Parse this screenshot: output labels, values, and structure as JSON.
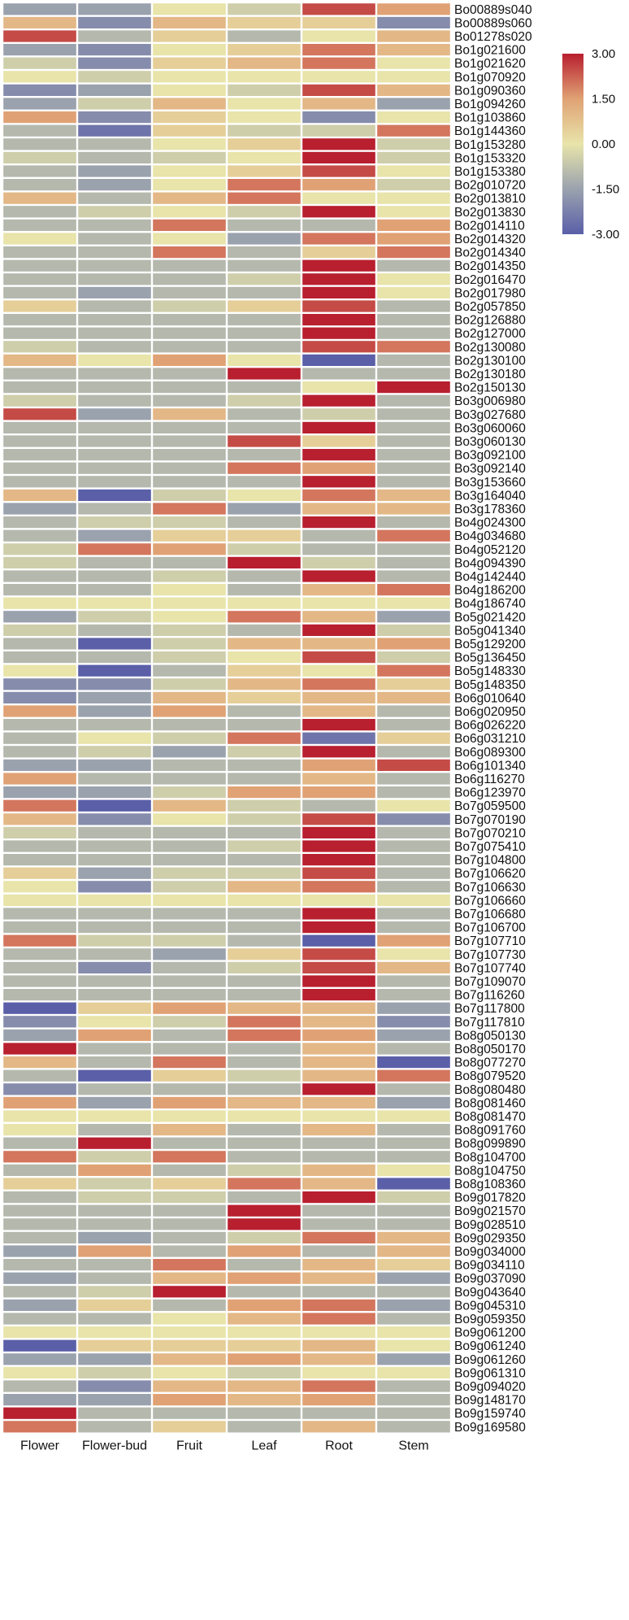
{
  "chart_data": {
    "type": "heatmap",
    "columns": [
      "Flower",
      "Flower-bud",
      "Fruit",
      "Leaf",
      "Root",
      "Stem"
    ],
    "color_scale": {
      "min": -3,
      "max": 3,
      "stops": [
        {
          "value": -3,
          "color": "#5a5fa8"
        },
        {
          "value": -1.5,
          "color": "#9aa2ae"
        },
        {
          "value": 0,
          "color": "#e8e4aa"
        },
        {
          "value": 1.5,
          "color": "#e0a274"
        },
        {
          "value": 3,
          "color": "#b81f2f"
        }
      ],
      "tick_labels": [
        "3.00",
        "1.50",
        "0.00",
        "-1.50",
        "-3.00"
      ]
    },
    "rows": [
      {
        "gene": "Bo00889s040",
        "values": [
          -1.5,
          -1.5,
          0,
          -0.5,
          2.5,
          1.5
        ]
      },
      {
        "gene": "Bo00889s060",
        "values": [
          1,
          -2,
          1,
          0.5,
          0.5,
          -2
        ]
      },
      {
        "gene": "Bo01278s020",
        "values": [
          2.5,
          -1,
          0.5,
          -1,
          0,
          1
        ]
      },
      {
        "gene": "Bo1g021600",
        "values": [
          -1.5,
          -2,
          0,
          0.5,
          2,
          1
        ]
      },
      {
        "gene": "Bo1g021620",
        "values": [
          -0.5,
          -2,
          0.5,
          1,
          2,
          0
        ]
      },
      {
        "gene": "Bo1g070920",
        "values": [
          0,
          -0.5,
          0,
          0,
          0,
          0
        ]
      },
      {
        "gene": "Bo1g090360",
        "values": [
          -2,
          -1.5,
          0,
          -0.5,
          2.5,
          1
        ]
      },
      {
        "gene": "Bo1g094260",
        "values": [
          -1.5,
          -0.5,
          1,
          0,
          1,
          -1.5
        ]
      },
      {
        "gene": "Bo1g103860",
        "values": [
          1.5,
          -2,
          0.5,
          0,
          -2,
          0
        ]
      },
      {
        "gene": "Bo1g144360",
        "values": [
          -1,
          -2.5,
          0.5,
          -0.5,
          -0.5,
          2
        ]
      },
      {
        "gene": "Bo1g153280",
        "values": [
          -1,
          -1,
          0,
          0.5,
          3,
          -0.5
        ]
      },
      {
        "gene": "Bo1g153320",
        "values": [
          -0.5,
          -1,
          -0.5,
          0,
          3,
          -0.5
        ]
      },
      {
        "gene": "Bo1g153380",
        "values": [
          -1,
          -1.5,
          0,
          0.5,
          2.5,
          0
        ]
      },
      {
        "gene": "Bo2g010720",
        "values": [
          -1,
          -1.5,
          0,
          2,
          1.5,
          -0.5
        ]
      },
      {
        "gene": "Bo2g013810",
        "values": [
          1,
          -1,
          1,
          2,
          0,
          0
        ]
      },
      {
        "gene": "Bo2g013830",
        "values": [
          -1,
          -0.5,
          0,
          -0.5,
          3,
          0
        ]
      },
      {
        "gene": "Bo2g014110",
        "values": [
          -1,
          -1,
          2,
          -1,
          -1,
          1.5
        ]
      },
      {
        "gene": "Bo2g014320",
        "values": [
          0,
          -1,
          0,
          -1.5,
          2,
          1.5
        ]
      },
      {
        "gene": "Bo2g014340",
        "values": [
          -1,
          -1,
          2,
          -1,
          0.5,
          2
        ]
      },
      {
        "gene": "Bo2g014350",
        "values": [
          -1,
          -1,
          -1,
          -1,
          3,
          -1
        ]
      },
      {
        "gene": "Bo2g016470",
        "values": [
          -1,
          -1,
          -1,
          -0.5,
          3,
          0
        ]
      },
      {
        "gene": "Bo2g017980",
        "values": [
          -1,
          -1.5,
          -1,
          -1,
          3,
          0
        ]
      },
      {
        "gene": "Bo2g057850",
        "values": [
          0.5,
          -1,
          -0.5,
          0.5,
          2.5,
          -1
        ]
      },
      {
        "gene": "Bo2g126880",
        "values": [
          -1,
          -1,
          -1,
          -1,
          3,
          -1
        ]
      },
      {
        "gene": "Bo2g127000",
        "values": [
          -1,
          -1,
          -1,
          -1,
          3,
          -1
        ]
      },
      {
        "gene": "Bo2g130080",
        "values": [
          -0.5,
          -1,
          -1,
          -1,
          2.5,
          2
        ]
      },
      {
        "gene": "Bo2g130100",
        "values": [
          1,
          0,
          1.5,
          0,
          -3,
          -1
        ]
      },
      {
        "gene": "Bo2g130180",
        "values": [
          -1,
          -1,
          -1,
          3,
          -1,
          -1
        ]
      },
      {
        "gene": "Bo2g150130",
        "values": [
          -1,
          -1,
          -1,
          -1,
          0,
          3
        ]
      },
      {
        "gene": "Bo3g006980",
        "values": [
          -0.5,
          -1,
          -1,
          -0.5,
          3,
          -1
        ]
      },
      {
        "gene": "Bo3g027680",
        "values": [
          2.5,
          -1.5,
          1,
          -1,
          -0.5,
          -1
        ]
      },
      {
        "gene": "Bo3g060060",
        "values": [
          -1,
          -1,
          -1,
          -1,
          3,
          -1
        ]
      },
      {
        "gene": "Bo3g060130",
        "values": [
          -1,
          -1,
          -1,
          2.5,
          0.5,
          -1
        ]
      },
      {
        "gene": "Bo3g092100",
        "values": [
          -1,
          -1,
          -1,
          -1,
          3,
          -1
        ]
      },
      {
        "gene": "Bo3g092140",
        "values": [
          -1,
          -1,
          -1,
          2,
          1.5,
          -1
        ]
      },
      {
        "gene": "Bo3g153660",
        "values": [
          -1,
          -1,
          -1,
          -1,
          3,
          -1
        ]
      },
      {
        "gene": "Bo3g164040",
        "values": [
          1,
          -3,
          -0.5,
          0,
          2,
          1
        ]
      },
      {
        "gene": "Bo3g178360",
        "values": [
          -1.5,
          -1,
          2,
          -1.5,
          1,
          1
        ]
      },
      {
        "gene": "Bo4g024300",
        "values": [
          -1,
          -0.5,
          -0.5,
          -1,
          3,
          -1
        ]
      },
      {
        "gene": "Bo4g034680",
        "values": [
          -1,
          -1.5,
          0.5,
          0.5,
          -1,
          2
        ]
      },
      {
        "gene": "Bo4g052120",
        "values": [
          -0.5,
          2,
          1.5,
          -0.5,
          -1,
          -1
        ]
      },
      {
        "gene": "Bo4g094390",
        "values": [
          -0.5,
          -1,
          -1,
          3,
          -0.5,
          -1
        ]
      },
      {
        "gene": "Bo4g142440",
        "values": [
          -1,
          -1,
          -0.5,
          -1,
          3,
          -1
        ]
      },
      {
        "gene": "Bo4g186200",
        "values": [
          -1,
          -1,
          0,
          -1,
          1,
          2
        ]
      },
      {
        "gene": "Bo4g186740",
        "values": [
          0,
          0,
          0,
          0,
          0,
          0
        ]
      },
      {
        "gene": "Bo5g021420",
        "values": [
          -1.5,
          -0.5,
          0,
          2,
          1,
          -1.5
        ]
      },
      {
        "gene": "Bo5g041340",
        "values": [
          -0.5,
          -1,
          -0.5,
          -1,
          3,
          -0.5
        ]
      },
      {
        "gene": "Bo5g129200",
        "values": [
          -1,
          -3,
          -0.5,
          1,
          1,
          1.5
        ]
      },
      {
        "gene": "Bo5g136450",
        "values": [
          -1,
          -1,
          -0.5,
          0,
          2.5,
          -0.5
        ]
      },
      {
        "gene": "Bo5g148330",
        "values": [
          0,
          -3,
          -1,
          0.5,
          0,
          2
        ]
      },
      {
        "gene": "Bo5g148350",
        "values": [
          -2,
          -2,
          -0.5,
          1,
          2,
          0.5
        ]
      },
      {
        "gene": "Bo6g010640",
        "values": [
          -2,
          -1.5,
          1,
          0.5,
          1,
          1
        ]
      },
      {
        "gene": "Bo6g020950",
        "values": [
          1.5,
          -1.5,
          1.5,
          -1,
          1,
          -1
        ]
      },
      {
        "gene": "Bo6g026220",
        "values": [
          -1,
          -1,
          -1,
          -1,
          3,
          -1
        ]
      },
      {
        "gene": "Bo6g031210",
        "values": [
          -1,
          0,
          -0.5,
          2,
          -2.5,
          0.5
        ]
      },
      {
        "gene": "Bo6g089300",
        "values": [
          -1,
          -0.5,
          -1.5,
          -0.5,
          3,
          -1
        ]
      },
      {
        "gene": "Bo6g101340",
        "values": [
          -1.5,
          -1.5,
          -1,
          -1,
          1.5,
          2.5
        ]
      },
      {
        "gene": "Bo6g116270",
        "values": [
          1.5,
          -1,
          -1,
          -1,
          1,
          -1
        ]
      },
      {
        "gene": "Bo6g123970",
        "values": [
          -1.5,
          -1.5,
          -0.5,
          1.5,
          1.5,
          -1
        ]
      },
      {
        "gene": "Bo7g059500",
        "values": [
          2,
          -3,
          1,
          -0.5,
          -1,
          0
        ]
      },
      {
        "gene": "Bo7g070190",
        "values": [
          1,
          -2,
          0,
          -0.5,
          2.5,
          -2
        ]
      },
      {
        "gene": "Bo7g070210",
        "values": [
          -0.5,
          -1,
          -1,
          -1,
          3,
          -1
        ]
      },
      {
        "gene": "Bo7g075410",
        "values": [
          -1,
          -1,
          -1,
          -0.5,
          3,
          -1
        ]
      },
      {
        "gene": "Bo7g104800",
        "values": [
          -1,
          -1,
          -1,
          -1,
          3,
          -1
        ]
      },
      {
        "gene": "Bo7g106620",
        "values": [
          0.5,
          -1.5,
          -0.5,
          -0.5,
          2.5,
          -1
        ]
      },
      {
        "gene": "Bo7g106630",
        "values": [
          0,
          -2,
          -0.5,
          1,
          2,
          -1
        ]
      },
      {
        "gene": "Bo7g106660",
        "values": [
          0,
          0,
          0,
          0,
          0,
          0
        ]
      },
      {
        "gene": "Bo7g106680",
        "values": [
          -1,
          -1,
          -1,
          -1,
          3,
          -1
        ]
      },
      {
        "gene": "Bo7g106700",
        "values": [
          -1,
          -1,
          -1,
          -1,
          3,
          -1
        ]
      },
      {
        "gene": "Bo7g107710",
        "values": [
          2,
          -0.5,
          -0.5,
          -1,
          -3,
          1.5
        ]
      },
      {
        "gene": "Bo7g107730",
        "values": [
          -1,
          -1,
          -1.5,
          0.5,
          2.5,
          0
        ]
      },
      {
        "gene": "Bo7g107740",
        "values": [
          -1,
          -2,
          -1,
          -0.5,
          2.5,
          1
        ]
      },
      {
        "gene": "Bo7g109070",
        "values": [
          -1,
          -1,
          -1,
          -1,
          3,
          -1
        ]
      },
      {
        "gene": "Bo7g116260",
        "values": [
          -1,
          -1,
          -1,
          -1,
          3,
          -1
        ]
      },
      {
        "gene": "Bo7g117800",
        "values": [
          -3,
          0.5,
          1.5,
          1,
          1,
          -1.5
        ]
      },
      {
        "gene": "Bo7g117810",
        "values": [
          -2,
          0,
          -0.5,
          2,
          1,
          -2
        ]
      },
      {
        "gene": "Bo8g050130",
        "values": [
          -1.5,
          1.5,
          -1,
          2,
          1.5,
          -1.5
        ]
      },
      {
        "gene": "Bo8g050170",
        "values": [
          3,
          -1,
          -1,
          -1,
          1,
          -1
        ]
      },
      {
        "gene": "Bo8g077270",
        "values": [
          1,
          -1,
          2,
          -1,
          1,
          -3
        ]
      },
      {
        "gene": "Bo8g079520",
        "values": [
          -1,
          -3,
          0.5,
          -0.5,
          1,
          2
        ]
      },
      {
        "gene": "Bo8g080480",
        "values": [
          -2,
          -1,
          -1,
          -1,
          3,
          -1
        ]
      },
      {
        "gene": "Bo8g081460",
        "values": [
          1.5,
          -1.5,
          1.5,
          1,
          1,
          -1.5
        ]
      },
      {
        "gene": "Bo8g081470",
        "values": [
          0,
          0,
          0,
          0,
          0,
          0
        ]
      },
      {
        "gene": "Bo8g091760",
        "values": [
          0,
          -1,
          1,
          -1,
          1,
          -1
        ]
      },
      {
        "gene": "Bo8g099890",
        "values": [
          -1,
          3,
          -1,
          -1,
          -1,
          -1
        ]
      },
      {
        "gene": "Bo8g104700",
        "values": [
          2,
          -0.5,
          2,
          -1,
          -1,
          -1
        ]
      },
      {
        "gene": "Bo8g104750",
        "values": [
          -1,
          1.5,
          -1,
          -0.5,
          1,
          0
        ]
      },
      {
        "gene": "Bo8g108360",
        "values": [
          0.5,
          -0.5,
          0.5,
          2,
          1,
          -3
        ]
      },
      {
        "gene": "Bo9g017820",
        "values": [
          -1,
          -0.5,
          -0.5,
          -1,
          3,
          -0.5
        ]
      },
      {
        "gene": "Bo9g021570",
        "values": [
          -1,
          -1,
          -1,
          3,
          -1,
          -1
        ]
      },
      {
        "gene": "Bo9g028510",
        "values": [
          -1,
          -1,
          -1,
          3,
          -1,
          -1
        ]
      },
      {
        "gene": "Bo9g029350",
        "values": [
          -1,
          -1.5,
          -1,
          -0.5,
          2,
          1
        ]
      },
      {
        "gene": "Bo9g034000",
        "values": [
          -1.5,
          1.5,
          -1,
          1.5,
          -1,
          1
        ]
      },
      {
        "gene": "Bo9g034110",
        "values": [
          -1,
          -1,
          2,
          -1,
          1,
          0.5
        ]
      },
      {
        "gene": "Bo9g037090",
        "values": [
          -1.5,
          -1,
          1,
          1.5,
          1,
          -1.5
        ]
      },
      {
        "gene": "Bo9g043640",
        "values": [
          -1,
          -0.5,
          3,
          -1,
          -1,
          -1
        ]
      },
      {
        "gene": "Bo9g045310",
        "values": [
          -1.5,
          0.5,
          -1,
          1.5,
          2,
          -1.5
        ]
      },
      {
        "gene": "Bo9g059350",
        "values": [
          -1,
          -1,
          0,
          1,
          2,
          -1
        ]
      },
      {
        "gene": "Bo9g061200",
        "values": [
          0,
          0,
          0,
          0,
          0,
          0
        ]
      },
      {
        "gene": "Bo9g061240",
        "values": [
          -3,
          0.5,
          0.5,
          0.5,
          1,
          0
        ]
      },
      {
        "gene": "Bo9g061260",
        "values": [
          -1.5,
          -1.5,
          1,
          1.5,
          1,
          -1.5
        ]
      },
      {
        "gene": "Bo9g061310",
        "values": [
          0,
          -0.5,
          0,
          -0.5,
          0,
          0
        ]
      },
      {
        "gene": "Bo9g094020",
        "values": [
          -1,
          -2,
          1,
          1,
          2,
          -1
        ]
      },
      {
        "gene": "Bo9g148170",
        "values": [
          -1.5,
          -1.5,
          1.5,
          1,
          1.5,
          -1
        ]
      },
      {
        "gene": "Bo9g159740",
        "values": [
          3,
          -1,
          -1,
          -1,
          -1,
          -1
        ]
      },
      {
        "gene": "Bo9g169580",
        "values": [
          2,
          -1,
          0.5,
          -1,
          1,
          -1
        ]
      }
    ]
  }
}
